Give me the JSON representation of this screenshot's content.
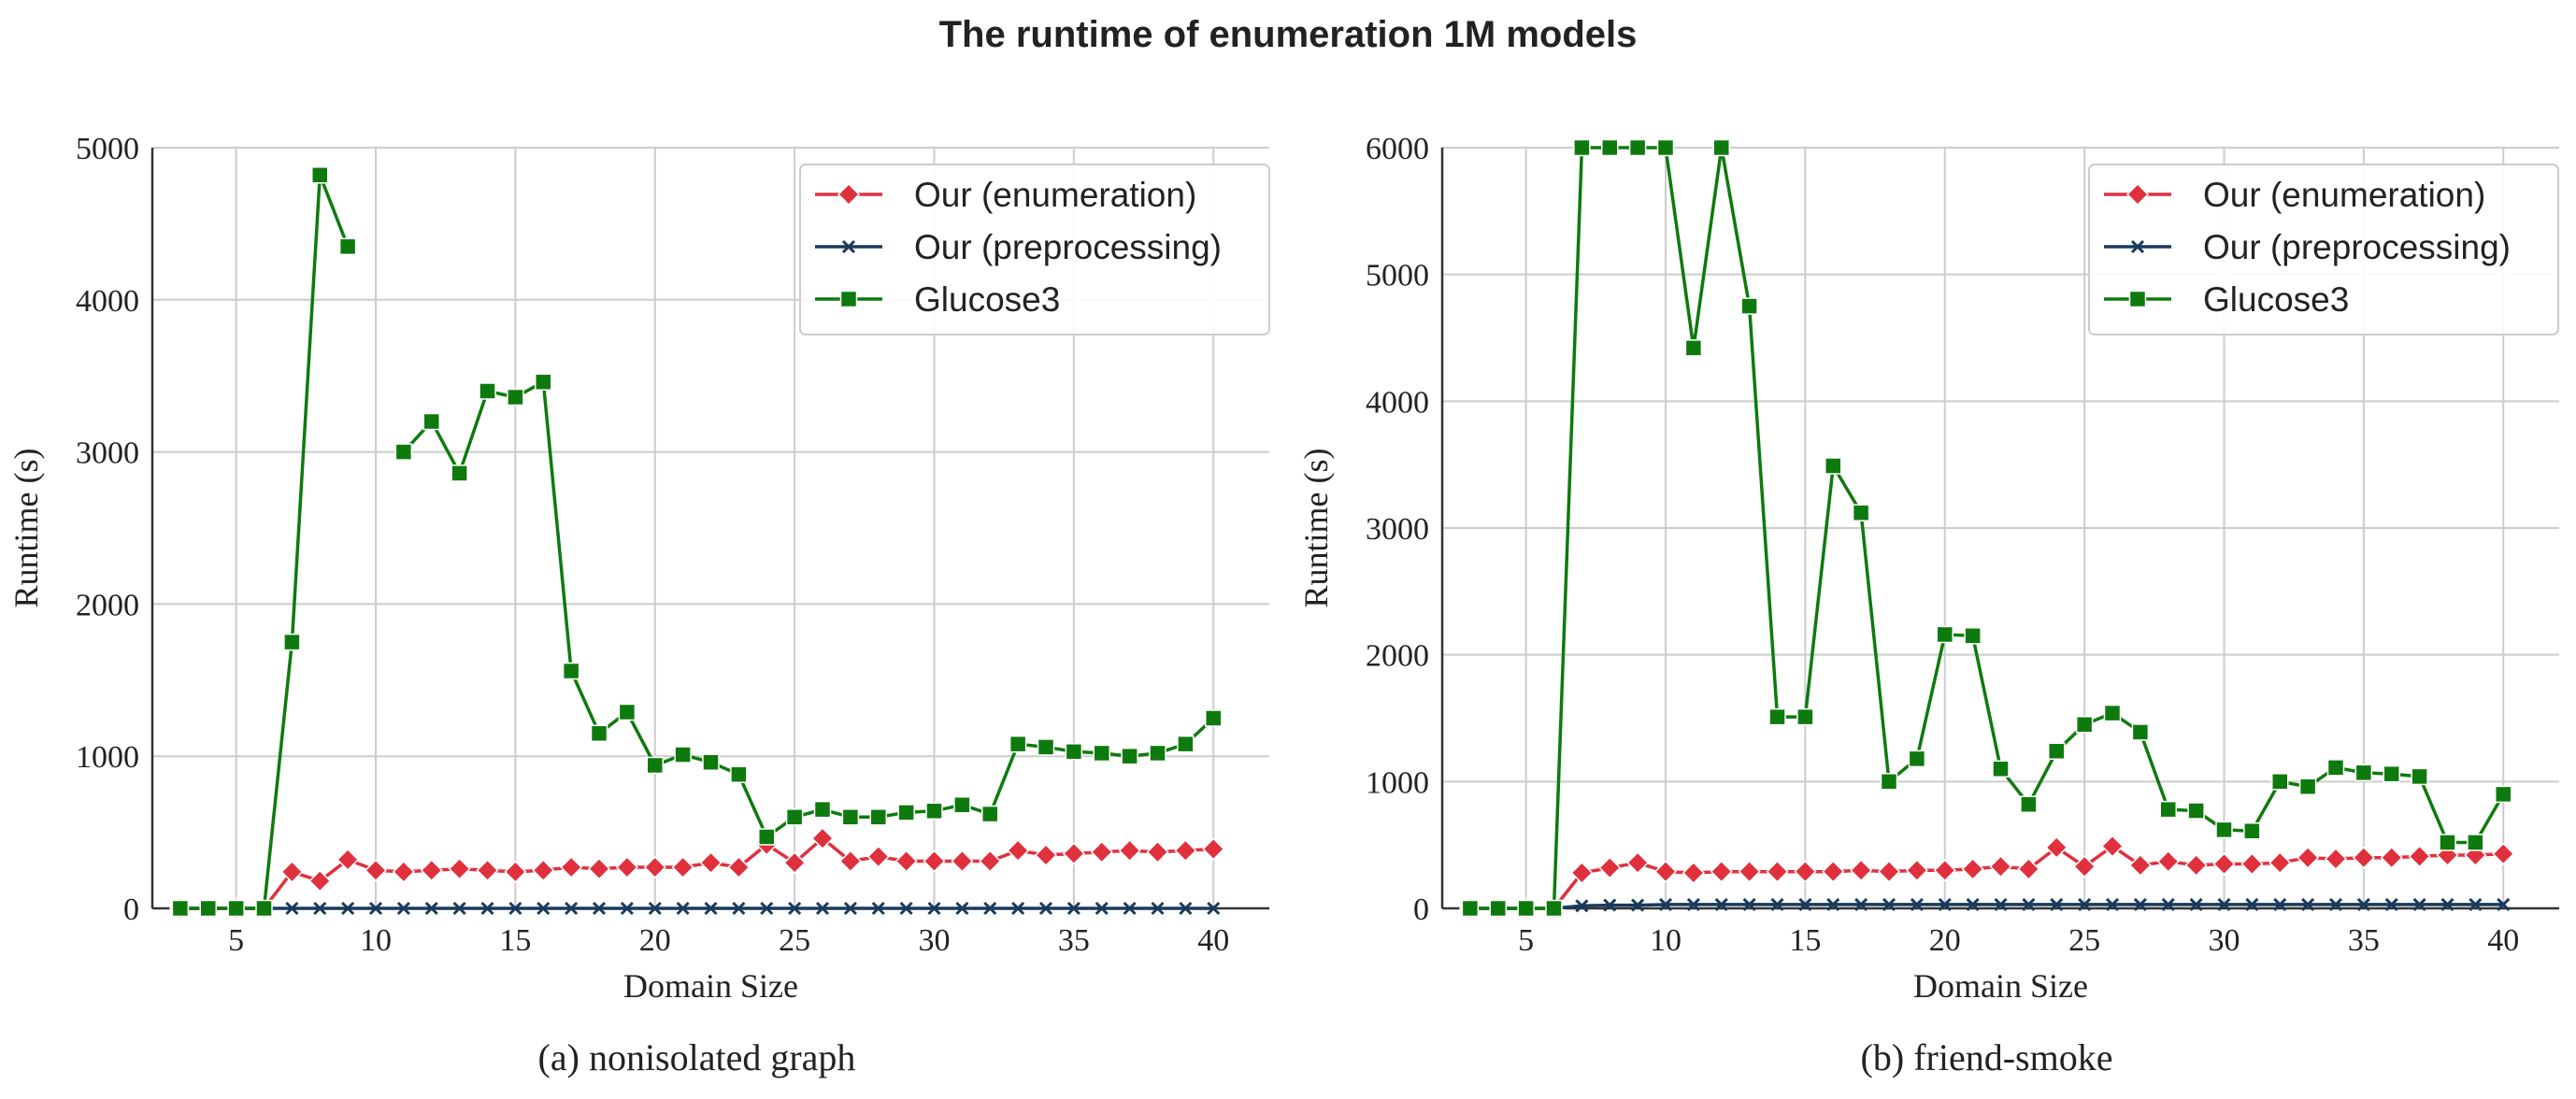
{
  "figure": {
    "title": "The runtime of enumeration 1M models"
  },
  "colors": {
    "enumeration": "#e0303e",
    "preprocessing": "#1a3a5c",
    "glucose": "#0e7a0e"
  },
  "chart_data": [
    {
      "type": "line",
      "caption": "(a) nonisolated graph",
      "xlabel": "Domain Size",
      "ylabel": "Runtime (s)",
      "xlim": [
        2,
        42
      ],
      "ylim": [
        0,
        5000
      ],
      "xticks": [
        5,
        10,
        15,
        20,
        25,
        30,
        35,
        40
      ],
      "yticks": [
        0,
        1000,
        2000,
        3000,
        4000,
        5000
      ],
      "grid": true,
      "legend_position": "top-right",
      "x": [
        3,
        4,
        5,
        6,
        7,
        8,
        9,
        10,
        11,
        12,
        13,
        14,
        15,
        16,
        17,
        18,
        19,
        20,
        21,
        22,
        23,
        24,
        25,
        26,
        27,
        28,
        29,
        30,
        31,
        32,
        33,
        34,
        35,
        36,
        37,
        38,
        39,
        40
      ],
      "series": [
        {
          "name": "Our (enumeration)",
          "marker": "diamond",
          "values": [
            0,
            0,
            0,
            0,
            240,
            180,
            320,
            250,
            240,
            250,
            260,
            250,
            240,
            250,
            270,
            260,
            270,
            270,
            270,
            300,
            270,
            420,
            300,
            460,
            310,
            340,
            310,
            310,
            310,
            310,
            380,
            350,
            360,
            370,
            380,
            370,
            380,
            390
          ]
        },
        {
          "name": "Our (preprocessing)",
          "marker": "x",
          "values": [
            0,
            0,
            0,
            0,
            0,
            0,
            0,
            0,
            0,
            0,
            0,
            0,
            0,
            0,
            0,
            0,
            0,
            0,
            0,
            0,
            0,
            0,
            0,
            0,
            0,
            0,
            0,
            0,
            0,
            0,
            0,
            0,
            0,
            0,
            0,
            0,
            0,
            0
          ]
        },
        {
          "name": "Glucose3",
          "marker": "square",
          "values": [
            0,
            0,
            0,
            0,
            1750,
            4820,
            4350,
            null,
            3000,
            3200,
            2860,
            3400,
            3360,
            3460,
            1560,
            1150,
            1290,
            940,
            1010,
            960,
            880,
            470,
            600,
            650,
            600,
            600,
            630,
            640,
            680,
            620,
            1080,
            1060,
            1030,
            1020,
            1000,
            1020,
            1080,
            1250
          ]
        }
      ]
    },
    {
      "type": "line",
      "caption": "(b) friend-smoke",
      "xlabel": "Domain Size",
      "ylabel": "Runtime (s)",
      "xlim": [
        2,
        42
      ],
      "ylim": [
        0,
        6000
      ],
      "xticks": [
        5,
        10,
        15,
        20,
        25,
        30,
        35,
        40
      ],
      "yticks": [
        0,
        1000,
        2000,
        3000,
        4000,
        5000,
        6000
      ],
      "grid": true,
      "legend_position": "top-right",
      "x": [
        3,
        4,
        5,
        6,
        7,
        8,
        9,
        10,
        11,
        12,
        13,
        14,
        15,
        16,
        17,
        18,
        19,
        20,
        21,
        22,
        23,
        24,
        25,
        26,
        27,
        28,
        29,
        30,
        31,
        32,
        33,
        34,
        35,
        36,
        37,
        38,
        39,
        40
      ],
      "series": [
        {
          "name": "Our (enumeration)",
          "marker": "diamond",
          "values": [
            0,
            0,
            0,
            0,
            280,
            320,
            360,
            290,
            280,
            290,
            290,
            290,
            290,
            290,
            300,
            290,
            300,
            300,
            310,
            330,
            310,
            480,
            330,
            490,
            340,
            370,
            340,
            350,
            350,
            360,
            400,
            390,
            400,
            400,
            410,
            420,
            420,
            430
          ]
        },
        {
          "name": "Our (preprocessing)",
          "marker": "x",
          "values": [
            0,
            0,
            0,
            0,
            20,
            25,
            25,
            30,
            30,
            30,
            30,
            30,
            30,
            30,
            30,
            30,
            30,
            30,
            30,
            30,
            30,
            30,
            30,
            30,
            30,
            30,
            30,
            30,
            30,
            30,
            30,
            30,
            30,
            30,
            30,
            30,
            30,
            30
          ]
        },
        {
          "name": "Glucose3",
          "marker": "square",
          "values": [
            0,
            0,
            0,
            0,
            6000,
            6000,
            6000,
            6000,
            4420,
            6000,
            4750,
            1510,
            1510,
            3490,
            3120,
            1000,
            1180,
            2160,
            2150,
            1100,
            820,
            1240,
            1450,
            1540,
            1390,
            780,
            770,
            620,
            610,
            1000,
            960,
            1110,
            1070,
            1060,
            1040,
            520,
            520,
            900
          ]
        }
      ]
    }
  ]
}
